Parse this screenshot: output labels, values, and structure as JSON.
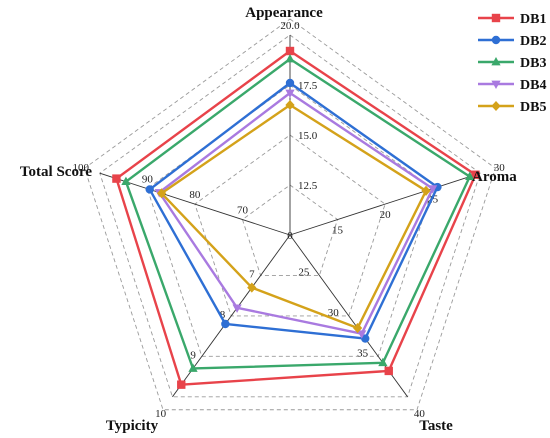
{
  "chart_data": {
    "type": "radar",
    "title": "",
    "axes": [
      {
        "name": "Appearance",
        "min": 10,
        "max": 20,
        "ticks": [
          "12.5",
          "15.0",
          "17.5",
          "20.0"
        ],
        "tick_values": [
          12.5,
          15.0,
          17.5,
          20.0
        ],
        "center_label": "10"
      },
      {
        "name": "Aroma",
        "min": 10,
        "max": 30,
        "ticks": [
          "15",
          "20",
          "25",
          "30"
        ],
        "tick_values": [
          15,
          20,
          25,
          30
        ],
        "center_label": "10"
      },
      {
        "name": "Taste",
        "min": 20,
        "max": 40,
        "ticks": [
          "25",
          "30",
          "35",
          "40"
        ],
        "tick_values": [
          25,
          30,
          35,
          40
        ],
        "center_label": "20"
      },
      {
        "name": "Typicity",
        "min": 6,
        "max": 10,
        "ticks": [
          "6",
          "7",
          "8",
          "9",
          "10"
        ],
        "tick_values": [
          6,
          7,
          8,
          9,
          10
        ],
        "center_label": ""
      },
      {
        "name": "Total Score",
        "min": 60,
        "max": 100,
        "ticks": [
          "70",
          "80",
          "90",
          "100"
        ],
        "tick_values": [
          70,
          80,
          90,
          100
        ],
        "center_label": "60"
      }
    ],
    "series": [
      {
        "name": "DB1",
        "color": "#e8434a",
        "marker": "square",
        "values": [
          19.2,
          29.5,
          36.8,
          9.7,
          96.5
        ]
      },
      {
        "name": "DB2",
        "color": "#2e6fd4",
        "marker": "circle",
        "values": [
          17.6,
          25.5,
          32.8,
          8.2,
          89.5
        ]
      },
      {
        "name": "DB3",
        "color": "#3aa86b",
        "marker": "triangle-up",
        "values": [
          18.8,
          28.9,
          35.8,
          9.3,
          94.5
        ]
      },
      {
        "name": "DB4",
        "color": "#a97ae0",
        "marker": "triangle-down",
        "values": [
          17.1,
          25.0,
          32.2,
          7.8,
          87.5
        ]
      },
      {
        "name": "DB5",
        "color": "#d4a21a",
        "marker": "diamond",
        "values": [
          16.5,
          24.3,
          31.5,
          7.3,
          87.0
        ]
      }
    ],
    "legend": {
      "position": "top-right"
    },
    "grid": true
  }
}
